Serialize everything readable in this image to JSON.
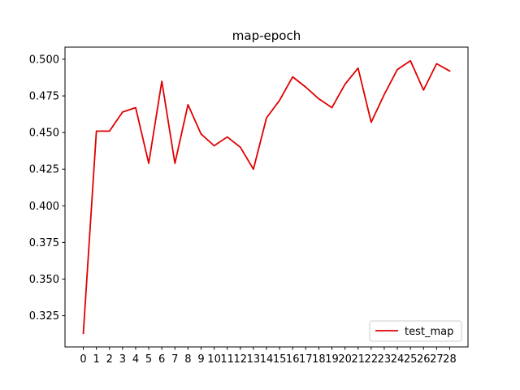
{
  "chart_data": {
    "type": "line",
    "title": "map-epoch",
    "xlabel": "",
    "ylabel": "",
    "x": [
      0,
      1,
      2,
      3,
      4,
      5,
      6,
      7,
      8,
      9,
      10,
      11,
      12,
      13,
      14,
      15,
      16,
      17,
      18,
      19,
      20,
      21,
      22,
      23,
      24,
      25,
      26,
      27,
      28
    ],
    "series": [
      {
        "name": "test_map",
        "color": "#e00000",
        "values": [
          0.313,
          0.451,
          0.451,
          0.464,
          0.467,
          0.429,
          0.485,
          0.429,
          0.469,
          0.449,
          0.441,
          0.447,
          0.44,
          0.425,
          0.46,
          0.472,
          0.488,
          0.481,
          0.473,
          0.467,
          0.483,
          0.494,
          0.457,
          0.476,
          0.493,
          0.499,
          0.479,
          0.497,
          0.492
        ]
      }
    ],
    "xlim": [
      -1.4,
      29.4
    ],
    "ylim": [
      0.3037,
      0.5083
    ],
    "xticks": [
      "0",
      "1",
      "2",
      "3",
      "4",
      "5",
      "6",
      "7",
      "8",
      "9",
      "10",
      "11",
      "12",
      "13",
      "14",
      "15",
      "16",
      "17",
      "18",
      "19",
      "20",
      "21",
      "22",
      "23",
      "24",
      "25",
      "26",
      "27",
      "28"
    ],
    "yticks": [
      0.325,
      0.35,
      0.375,
      0.4,
      0.425,
      0.45,
      0.475,
      0.5
    ],
    "ytick_labels": [
      "0.325",
      "0.350",
      "0.375",
      "0.400",
      "0.425",
      "0.450",
      "0.475",
      "0.500"
    ],
    "grid": false,
    "legend_position": "lower-right"
  }
}
